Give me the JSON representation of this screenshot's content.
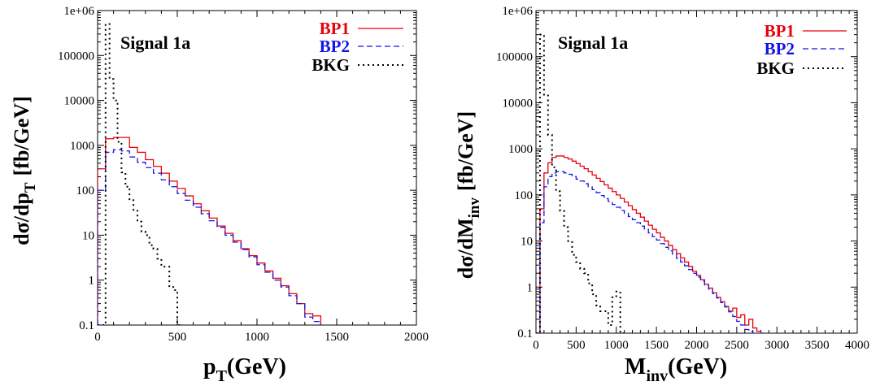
{
  "colors": {
    "bp1": "#e8000b",
    "bp2": "#1414e6",
    "bkg": "#000000"
  },
  "chart_data": [
    {
      "type": "line",
      "step": true,
      "log_y": true,
      "annotation": "Signal 1a",
      "xlabel": "p_T (GeV)",
      "xlabel_main": "p",
      "xlabel_sub": "T",
      "xlabel_unit": "(GeV)",
      "ylabel": "dσ/dp_T [fb/GeV]",
      "ylabel_main": "dσ/dp",
      "ylabel_sub": "T",
      "ylabel_unit": "[fb/GeV]",
      "xlim": [
        0,
        2000
      ],
      "ylim": [
        0.1,
        1000000
      ],
      "x_ticks": [
        0,
        500,
        1000,
        1500,
        2000
      ],
      "x_tick_labels": [
        "0",
        "500",
        "1000",
        "1500",
        "2000"
      ],
      "y_ticks": [
        0.1,
        1,
        10,
        100,
        1000,
        10000,
        100000,
        1000000
      ],
      "y_tick_labels": [
        "0.1",
        "1",
        "10",
        "100",
        "1000",
        "10000",
        "100000",
        "1e+06"
      ],
      "legend_position": "top-right",
      "series": [
        {
          "name": "BP1",
          "style": "solid",
          "color_key": "bp1",
          "edges": [
            0,
            50,
            100,
            150,
            200,
            250,
            300,
            350,
            400,
            450,
            500,
            550,
            600,
            650,
            700,
            750,
            800,
            850,
            900,
            950,
            1000,
            1050,
            1100,
            1150,
            1200,
            1250,
            1300,
            1350,
            1400
          ],
          "values": [
            300,
            1400,
            1500,
            1500,
            900,
            700,
            480,
            340,
            240,
            160,
            110,
            75,
            50,
            35,
            24,
            16,
            11,
            7.5,
            5,
            3.5,
            2.4,
            1.6,
            1.1,
            0.75,
            0.5,
            0.3,
            0.18,
            0.16
          ]
        },
        {
          "name": "BP2",
          "style": "dashed",
          "color_key": "bp2",
          "edges": [
            0,
            50,
            100,
            150,
            200,
            250,
            300,
            350,
            400,
            450,
            500,
            550,
            600,
            650,
            700,
            750,
            800,
            850,
            900,
            950,
            1000,
            1050,
            1100,
            1150,
            1200,
            1250,
            1300,
            1350,
            1400
          ],
          "values": [
            100,
            700,
            800,
            750,
            550,
            420,
            320,
            240,
            170,
            120,
            85,
            60,
            42,
            30,
            21,
            15,
            10,
            7,
            4.8,
            3.3,
            2.2,
            1.5,
            1,
            0.7,
            0.45,
            0.3,
            0.15,
            0.12
          ]
        },
        {
          "name": "BKG",
          "style": "dotted",
          "color_key": "bkg",
          "edges": [
            0,
            50,
            75,
            100,
            125,
            150,
            175,
            200,
            225,
            250,
            275,
            300,
            325,
            350,
            375,
            400,
            425,
            450,
            475,
            500,
            525
          ],
          "values": [
            0.1,
            500000,
            30000,
            10000,
            1200,
            250,
            120,
            60,
            35,
            20,
            12,
            10,
            6,
            5,
            3,
            2,
            2,
            0.7,
            0.6,
            0.1
          ]
        }
      ]
    },
    {
      "type": "line",
      "step": true,
      "log_y": true,
      "annotation": "Signal 1a",
      "xlabel": "M_inv (GeV)",
      "xlabel_main": "M",
      "xlabel_sub": "inv",
      "xlabel_unit": "(GeV)",
      "ylabel": "dσ/dM_inv [fb/GeV]",
      "ylabel_main": "dσ/dM",
      "ylabel_sub": "inv",
      "ylabel_unit": "[fb/GeV]",
      "xlim": [
        0,
        4000
      ],
      "ylim": [
        0.1,
        1000000
      ],
      "x_ticks": [
        0,
        500,
        1000,
        1500,
        2000,
        2500,
        3000,
        3500,
        4000
      ],
      "x_tick_labels": [
        "0",
        "500",
        "1000",
        "1500",
        "2000",
        "2500",
        "3000",
        "3500",
        "4000"
      ],
      "y_ticks": [
        0.1,
        1,
        10,
        100,
        1000,
        10000,
        100000,
        1000000
      ],
      "y_tick_labels": [
        "0.1",
        "1",
        "10",
        "100",
        "1000",
        "10000",
        "100000",
        "1e+06"
      ],
      "legend_position": "top-right",
      "series": [
        {
          "name": "BP1",
          "style": "solid",
          "color_key": "bp1",
          "edges": [
            0,
            50,
            100,
            150,
            200,
            250,
            300,
            350,
            400,
            450,
            500,
            550,
            600,
            650,
            700,
            750,
            800,
            850,
            900,
            950,
            1000,
            1050,
            1100,
            1150,
            1200,
            1250,
            1300,
            1350,
            1400,
            1450,
            1500,
            1550,
            1600,
            1650,
            1700,
            1750,
            1800,
            1850,
            1900,
            1950,
            2000,
            2050,
            2100,
            2150,
            2200,
            2250,
            2300,
            2350,
            2400,
            2450,
            2500,
            2550,
            2600,
            2650,
            2700,
            2750,
            2800,
            2850
          ],
          "values": [
            0.1,
            50,
            300,
            500,
            650,
            700,
            700,
            650,
            600,
            540,
            480,
            420,
            370,
            320,
            270,
            230,
            195,
            165,
            140,
            118,
            100,
            84,
            70,
            58,
            48,
            40,
            33,
            27,
            22,
            18,
            15,
            12,
            10,
            8,
            6.5,
            5.3,
            4.3,
            3.5,
            2.8,
            2.2,
            1.8,
            1.45,
            1.15,
            0.95,
            0.75,
            0.6,
            0.48,
            0.38,
            0.3,
            0.35,
            0.22,
            0.25,
            0.15,
            0.2,
            0.13,
            0.11,
            0.1
          ]
        },
        {
          "name": "BP2",
          "style": "dashed",
          "color_key": "bp2",
          "edges": [
            0,
            50,
            100,
            150,
            200,
            250,
            300,
            350,
            400,
            450,
            500,
            550,
            600,
            650,
            700,
            750,
            800,
            850,
            900,
            950,
            1000,
            1050,
            1100,
            1150,
            1200,
            1250,
            1300,
            1350,
            1400,
            1450,
            1500,
            1550,
            1600,
            1650,
            1700,
            1750,
            1800,
            1850,
            1900,
            1950,
            2000,
            2050,
            2100,
            2150,
            2200,
            2250,
            2300,
            2350,
            2400,
            2450,
            2500,
            2550,
            2600,
            2650,
            2700,
            2750,
            2800,
            2850
          ],
          "values": [
            0.1,
            25,
            150,
            250,
            300,
            320,
            320,
            300,
            280,
            250,
            220,
            200,
            175,
            150,
            130,
            112,
            97,
            83,
            72,
            62,
            54,
            46,
            40,
            34,
            29,
            25,
            21,
            18,
            15,
            12.5,
            10.5,
            8.8,
            7.3,
            6.1,
            5.1,
            4.2,
            3.5,
            2.9,
            2.4,
            2,
            1.65,
            1.35,
            1.1,
            0.9,
            0.72,
            0.58,
            0.46,
            0.37,
            0.29,
            0.23,
            0.18,
            0.15,
            0.12,
            0.11,
            0.1,
            0.1,
            0.1
          ]
        },
        {
          "name": "BKG",
          "style": "dotted",
          "color_key": "bkg",
          "edges": [
            0,
            50,
            100,
            150,
            200,
            250,
            300,
            350,
            400,
            450,
            500,
            550,
            600,
            650,
            700,
            750,
            800,
            850,
            900,
            950,
            1000,
            1050,
            1100
          ],
          "values": [
            0.1,
            300000,
            15000,
            2000,
            400,
            120,
            45,
            20,
            10,
            5,
            3.5,
            2.5,
            2,
            1.2,
            0.7,
            0.4,
            0.3,
            0.3,
            0.15,
            0.6,
            0.8,
            0.1
          ]
        }
      ]
    }
  ]
}
